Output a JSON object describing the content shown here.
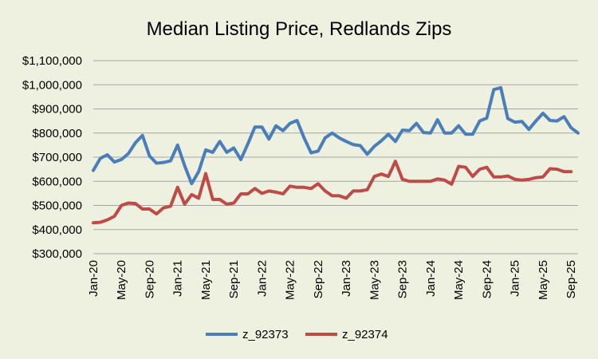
{
  "chart_data": {
    "type": "line",
    "title": "Median Listing Price, Redlands Zips",
    "xlabel": "",
    "ylabel": "",
    "ylim": [
      300000,
      1100000
    ],
    "y_ticks": [
      300000,
      400000,
      500000,
      600000,
      700000,
      800000,
      900000,
      1000000,
      1100000
    ],
    "y_tick_labels": [
      "$300,000",
      "$400,000",
      "$500,000",
      "$600,000",
      "$700,000",
      "$800,000",
      "$900,000",
      "$1,000,000",
      "$1,100,000"
    ],
    "x_tick_labels": [
      "Jan-20",
      "May-20",
      "Sep-20",
      "Jan-21",
      "May-21",
      "Sep-21",
      "Jan-22",
      "May-22",
      "Sep-22",
      "Jan-23",
      "May-23",
      "Sep-23",
      "Jan-24",
      "May-24",
      "Sep-24",
      "Jan-25",
      "May-25",
      "Sep-25"
    ],
    "grid": true,
    "legend_position": "bottom",
    "series": [
      {
        "name": "z_92373",
        "color": "#4a7ebb",
        "values": [
          645000,
          695000,
          710000,
          680000,
          690000,
          715000,
          760000,
          790000,
          705000,
          675000,
          678000,
          685000,
          750000,
          665000,
          590000,
          640000,
          730000,
          720000,
          765000,
          720000,
          738000,
          690000,
          755000,
          825000,
          825000,
          775000,
          830000,
          810000,
          840000,
          852000,
          780000,
          718000,
          725000,
          780000,
          800000,
          780000,
          765000,
          752000,
          748000,
          712000,
          745000,
          768000,
          795000,
          765000,
          812000,
          810000,
          840000,
          802000,
          800000,
          855000,
          800000,
          800000,
          830000,
          795000,
          795000,
          850000,
          862000,
          980000,
          988000,
          860000,
          845000,
          848000,
          815000,
          850000,
          882000,
          852000,
          850000,
          868000,
          822000,
          800000
        ]
      },
      {
        "name": "z_92374",
        "color": "#be4b48",
        "values": [
          428000,
          430000,
          440000,
          455000,
          500000,
          510000,
          508000,
          485000,
          485000,
          465000,
          490000,
          497000,
          575000,
          505000,
          545000,
          530000,
          632000,
          525000,
          525000,
          505000,
          510000,
          548000,
          548000,
          570000,
          550000,
          560000,
          555000,
          548000,
          580000,
          575000,
          575000,
          570000,
          590000,
          560000,
          540000,
          540000,
          530000,
          560000,
          560000,
          565000,
          620000,
          630000,
          620000,
          683000,
          608000,
          600000,
          600000,
          600000,
          600000,
          610000,
          605000,
          588000,
          662000,
          658000,
          620000,
          650000,
          658000,
          618000,
          618000,
          622000,
          608000,
          605000,
          608000,
          615000,
          618000,
          652000,
          650000,
          640000,
          640000
        ]
      }
    ]
  }
}
